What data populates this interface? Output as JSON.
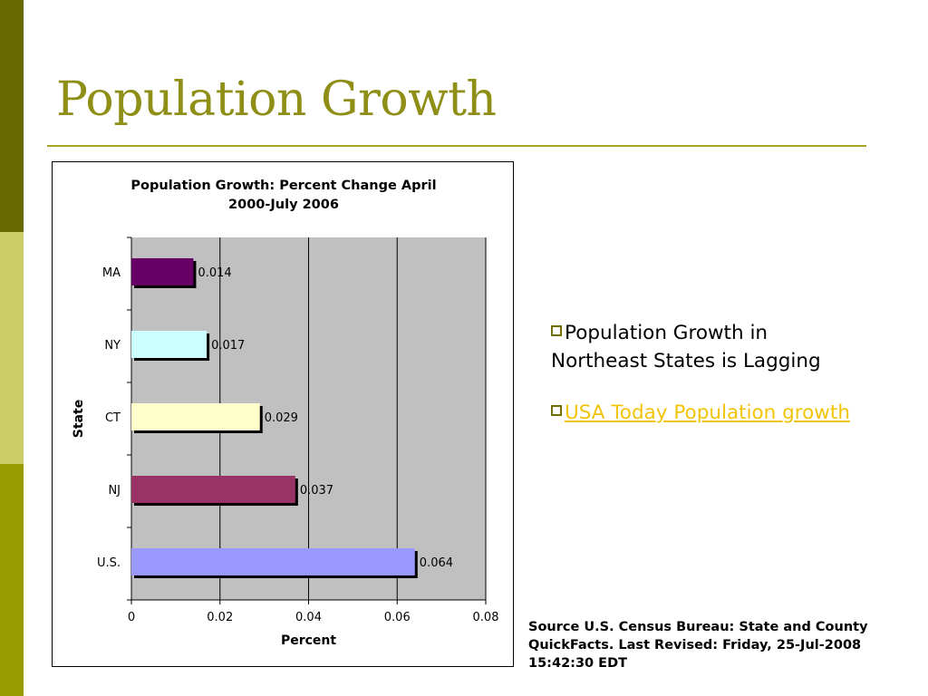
{
  "slide": {
    "title": "Population Growth",
    "bullets": [
      {
        "text": "Population Growth in Northeast States is Lagging",
        "is_link": false
      },
      {
        "text": "USA Today Population growth",
        "is_link": true
      }
    ],
    "source_note": "Source U.S. Census Bureau: State and County QuickFacts.  Last Revised: Friday, 25-Jul-2008 15:42:30 EDT"
  },
  "colors": {
    "title": "#8f8e16",
    "link": "#f1c40a",
    "sidebar": [
      "#676a00",
      "#cccc66",
      "#999900"
    ]
  },
  "chart_data": {
    "type": "bar",
    "orientation": "horizontal",
    "title_lines": [
      "Population Growth: Percent Change April",
      "2000-July 2006"
    ],
    "xlabel": "Percent",
    "ylabel": "State",
    "xlim": [
      0,
      0.08
    ],
    "xticks": [
      "0",
      "0.02",
      "0.04",
      "0.06",
      "0.08"
    ],
    "grid": true,
    "categories": [
      "MA",
      "NY",
      "CT",
      "NJ",
      "U.S."
    ],
    "values": [
      0.014,
      0.017,
      0.029,
      0.037,
      0.064
    ],
    "labels": [
      "0.014",
      "0.017",
      "0.029",
      "0.037",
      "0.064"
    ],
    "bar_colors": [
      "#660066",
      "#ccffff",
      "#ffffcc",
      "#993366",
      "#9999ff"
    ],
    "plot_background": "#c0c0c0"
  }
}
